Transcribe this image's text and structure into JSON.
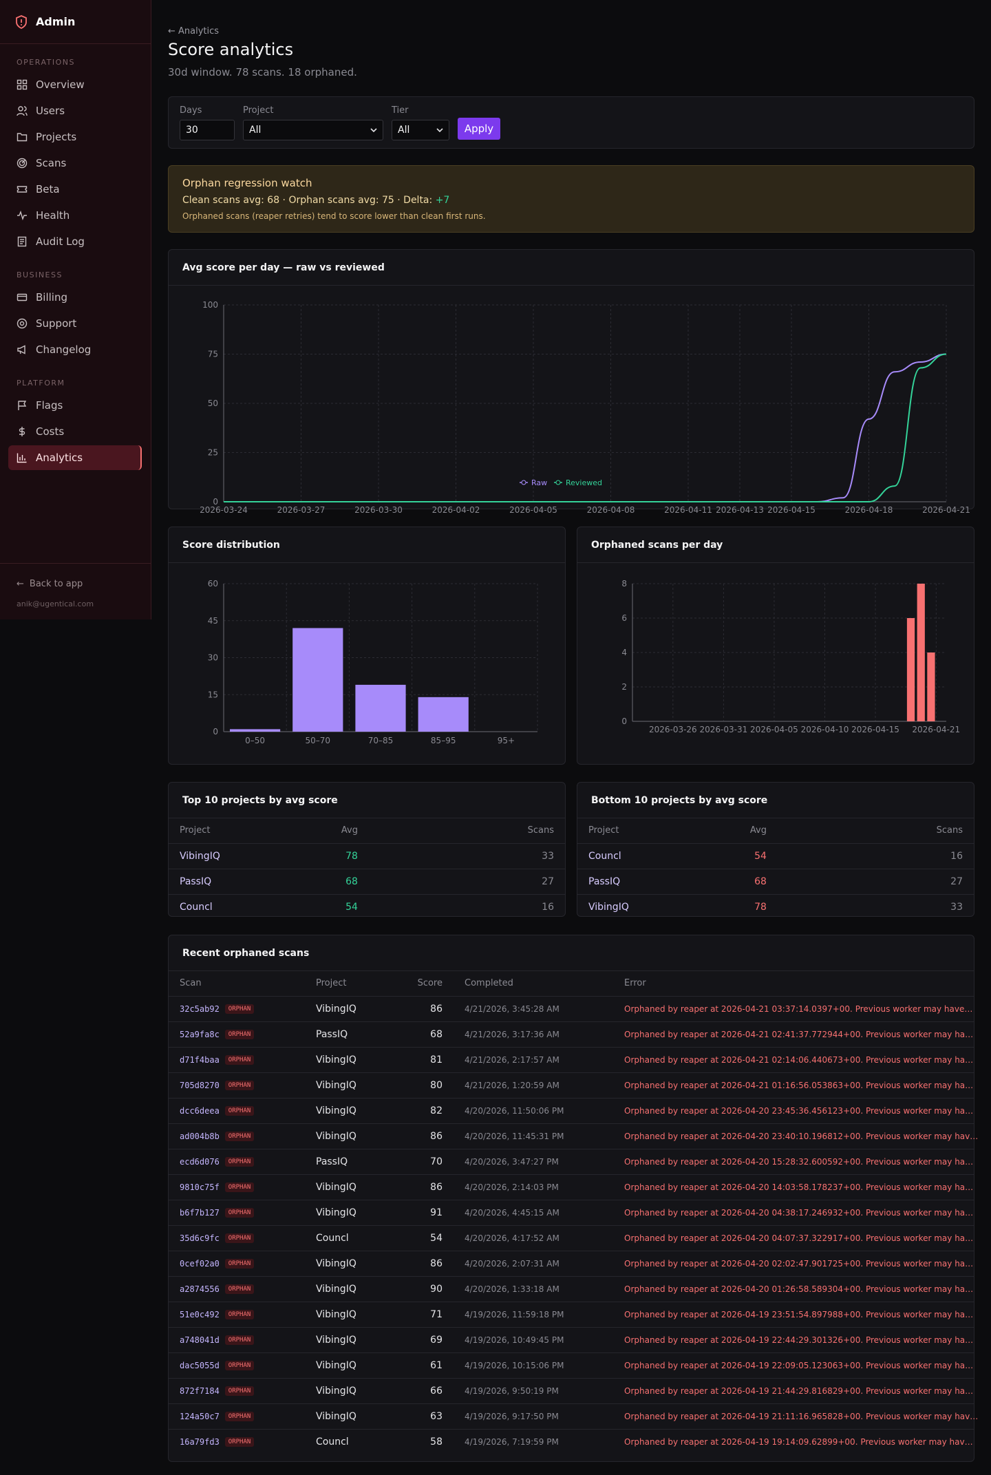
{
  "sidebar": {
    "brand": "Admin",
    "sections": [
      "OPERATIONS",
      "BUSINESS",
      "PLATFORM"
    ],
    "items": [
      {
        "label": "Overview",
        "icon": "grid-icon"
      },
      {
        "label": "Users",
        "icon": "users-icon"
      },
      {
        "label": "Projects",
        "icon": "folder-icon"
      },
      {
        "label": "Scans",
        "icon": "radar-icon"
      },
      {
        "label": "Beta",
        "icon": "ticket-icon"
      },
      {
        "label": "Health",
        "icon": "pulse-icon"
      },
      {
        "label": "Audit Log",
        "icon": "log-icon"
      },
      {
        "label": "Billing",
        "icon": "card-icon"
      },
      {
        "label": "Support",
        "icon": "lifebuoy-icon"
      },
      {
        "label": "Changelog",
        "icon": "megaphone-icon"
      },
      {
        "label": "Flags",
        "icon": "flag-icon"
      },
      {
        "label": "Costs",
        "icon": "dollar-icon"
      },
      {
        "label": "Analytics",
        "icon": "bar-chart-icon",
        "active": true
      }
    ],
    "back": "Back to app",
    "email": "anik@ugentical.com"
  },
  "header": {
    "crumb": "← Analytics",
    "title": "Score analytics",
    "subtitle": "30d window. 78 scans. 18 orphaned."
  },
  "filters": {
    "days_label": "Days",
    "days_value": "30",
    "project_label": "Project",
    "project_value": "All",
    "tier_label": "Tier",
    "tier_value": "All",
    "apply": "Apply"
  },
  "warning": {
    "title": "Orphan regression watch",
    "line_prefix": "Clean scans avg: 68 · Orphan scans avg: 75 · Delta: ",
    "delta": "+7",
    "note": "Orphaned scans (reaper retries) tend to score lower than clean first runs."
  },
  "colors": {
    "raw": "#a78bfa",
    "reviewed": "#34d399",
    "dist": "#a78bfa",
    "orphan": "#f87171"
  },
  "chart_data": [
    {
      "type": "line",
      "title": "Avg score per day — raw vs reviewed",
      "ylim": [
        0,
        100
      ],
      "yticks": [
        0,
        25,
        50,
        75,
        100
      ],
      "xticks": [
        "2026-03-24",
        "2026-03-27",
        "2026-03-30",
        "2026-04-02",
        "2026-04-05",
        "2026-04-08",
        "2026-04-11",
        "2026-04-13",
        "2026-04-15",
        "2026-04-18",
        "2026-04-21"
      ],
      "grid": true,
      "legend": "bottom",
      "series": [
        {
          "name": "Raw",
          "values": [
            {
              "x": "2026-03-24",
              "y": 0
            },
            {
              "x": "2026-04-16",
              "y": 0
            },
            {
              "x": "2026-04-17",
              "y": 2
            },
            {
              "x": "2026-04-18",
              "y": 42
            },
            {
              "x": "2026-04-19",
              "y": 66
            },
            {
              "x": "2026-04-20",
              "y": 71
            },
            {
              "x": "2026-04-21",
              "y": 75
            }
          ]
        },
        {
          "name": "Reviewed",
          "values": [
            {
              "x": "2026-03-24",
              "y": 0
            },
            {
              "x": "2026-04-18",
              "y": 0
            },
            {
              "x": "2026-04-19",
              "y": 8
            },
            {
              "x": "2026-04-20",
              "y": 68
            },
            {
              "x": "2026-04-21",
              "y": 75
            }
          ]
        }
      ]
    },
    {
      "type": "bar",
      "title": "Score distribution",
      "categories": [
        "0–50",
        "50–70",
        "70–85",
        "85–95",
        "95+"
      ],
      "values": [
        1,
        42,
        19,
        14,
        0
      ],
      "ylim": [
        0,
        60
      ],
      "yticks": [
        0,
        15,
        30,
        45,
        60
      ],
      "grid": true
    },
    {
      "type": "bar",
      "title": "Orphaned scans per day",
      "x": [
        "2026-04-19",
        "2026-04-20",
        "2026-04-21"
      ],
      "values": [
        6,
        8,
        4
      ],
      "ylim": [
        0,
        8
      ],
      "yticks": [
        0,
        2,
        4,
        6,
        8
      ],
      "xticks": [
        "2026-03-26",
        "2026-03-31",
        "2026-04-05",
        "2026-04-10",
        "2026-04-15",
        "2026-04-21"
      ],
      "grid": true
    }
  ],
  "top": {
    "title": "Top 10 projects by avg score",
    "cols": [
      "Project",
      "Avg",
      "Scans"
    ],
    "rows": [
      {
        "project": "VibingIQ",
        "avg": "78",
        "scans": "33"
      },
      {
        "project": "PassIQ",
        "avg": "68",
        "scans": "27"
      },
      {
        "project": "Councl",
        "avg": "54",
        "scans": "16"
      }
    ]
  },
  "bottom": {
    "title": "Bottom 10 projects by avg score",
    "cols": [
      "Project",
      "Avg",
      "Scans"
    ],
    "rows": [
      {
        "project": "Councl",
        "avg": "54",
        "scans": "16"
      },
      {
        "project": "PassIQ",
        "avg": "68",
        "scans": "27"
      },
      {
        "project": "VibingIQ",
        "avg": "78",
        "scans": "33"
      }
    ]
  },
  "orphans": {
    "title": "Recent orphaned scans",
    "cols": [
      "Scan",
      "Project",
      "Score",
      "Completed",
      "Error"
    ],
    "badge": "ORPHAN",
    "rows": [
      {
        "scan": "32c5ab92",
        "project": "VibingIQ",
        "score": "86",
        "completed": "4/21/2026, 3:45:28 AM",
        "error": "Orphaned by reaper at 2026-04-21 03:37:14.0397+00. Previous worker may have…"
      },
      {
        "scan": "52a9fa8c",
        "project": "PassIQ",
        "score": "68",
        "completed": "4/21/2026, 3:17:36 AM",
        "error": "Orphaned by reaper at 2026-04-21 02:41:37.772944+00. Previous worker may ha…"
      },
      {
        "scan": "d71f4baa",
        "project": "VibingIQ",
        "score": "81",
        "completed": "4/21/2026, 2:17:57 AM",
        "error": "Orphaned by reaper at 2026-04-21 02:14:06.440673+00. Previous worker may ha…"
      },
      {
        "scan": "705d8270",
        "project": "VibingIQ",
        "score": "80",
        "completed": "4/21/2026, 1:20:59 AM",
        "error": "Orphaned by reaper at 2026-04-21 01:16:56.053863+00. Previous worker may ha…"
      },
      {
        "scan": "dcc6deea",
        "project": "VibingIQ",
        "score": "82",
        "completed": "4/20/2026, 11:50:06 PM",
        "error": "Orphaned by reaper at 2026-04-20 23:45:36.456123+00. Previous worker may ha…"
      },
      {
        "scan": "ad004b8b",
        "project": "VibingIQ",
        "score": "86",
        "completed": "4/20/2026, 11:45:31 PM",
        "error": "Orphaned by reaper at 2026-04-20 23:40:10.196812+00. Previous worker may hav…"
      },
      {
        "scan": "ecd6d076",
        "project": "PassIQ",
        "score": "70",
        "completed": "4/20/2026, 3:47:27 PM",
        "error": "Orphaned by reaper at 2026-04-20 15:28:32.600592+00. Previous worker may ha…"
      },
      {
        "scan": "9810c75f",
        "project": "VibingIQ",
        "score": "86",
        "completed": "4/20/2026, 2:14:03 PM",
        "error": "Orphaned by reaper at 2026-04-20 14:03:58.178237+00. Previous worker may ha…"
      },
      {
        "scan": "b6f7b127",
        "project": "VibingIQ",
        "score": "91",
        "completed": "4/20/2026, 4:45:15 AM",
        "error": "Orphaned by reaper at 2026-04-20 04:38:17.246932+00. Previous worker may ha…"
      },
      {
        "scan": "35d6c9fc",
        "project": "Councl",
        "score": "54",
        "completed": "4/20/2026, 4:17:52 AM",
        "error": "Orphaned by reaper at 2026-04-20 04:07:37.322917+00. Previous worker may ha…"
      },
      {
        "scan": "0cef02a0",
        "project": "VibingIQ",
        "score": "86",
        "completed": "4/20/2026, 2:07:31 AM",
        "error": "Orphaned by reaper at 2026-04-20 02:02:47.901725+00. Previous worker may ha…"
      },
      {
        "scan": "a2874556",
        "project": "VibingIQ",
        "score": "90",
        "completed": "4/20/2026, 1:33:18 AM",
        "error": "Orphaned by reaper at 2026-04-20 01:26:58.589304+00. Previous worker may ha…"
      },
      {
        "scan": "51e0c492",
        "project": "VibingIQ",
        "score": "71",
        "completed": "4/19/2026, 11:59:18 PM",
        "error": "Orphaned by reaper at 2026-04-19 23:51:54.897988+00. Previous worker may ha…"
      },
      {
        "scan": "a748041d",
        "project": "VibingIQ",
        "score": "69",
        "completed": "4/19/2026, 10:49:45 PM",
        "error": "Orphaned by reaper at 2026-04-19 22:44:29.301326+00. Previous worker may ha…"
      },
      {
        "scan": "dac5055d",
        "project": "VibingIQ",
        "score": "61",
        "completed": "4/19/2026, 10:15:06 PM",
        "error": "Orphaned by reaper at 2026-04-19 22:09:05.123063+00. Previous worker may ha…"
      },
      {
        "scan": "872f7184",
        "project": "VibingIQ",
        "score": "66",
        "completed": "4/19/2026, 9:50:19 PM",
        "error": "Orphaned by reaper at 2026-04-19 21:44:29.816829+00. Previous worker may ha…"
      },
      {
        "scan": "124a50c7",
        "project": "VibingIQ",
        "score": "63",
        "completed": "4/19/2026, 9:17:50 PM",
        "error": "Orphaned by reaper at 2026-04-19 21:11:16.965828+00. Previous worker may hav…"
      },
      {
        "scan": "16a79fd3",
        "project": "Councl",
        "score": "58",
        "completed": "4/19/2026, 7:19:59 PM",
        "error": "Orphaned by reaper at 2026-04-19 19:14:09.62899+00. Previous worker may hav…"
      }
    ]
  }
}
